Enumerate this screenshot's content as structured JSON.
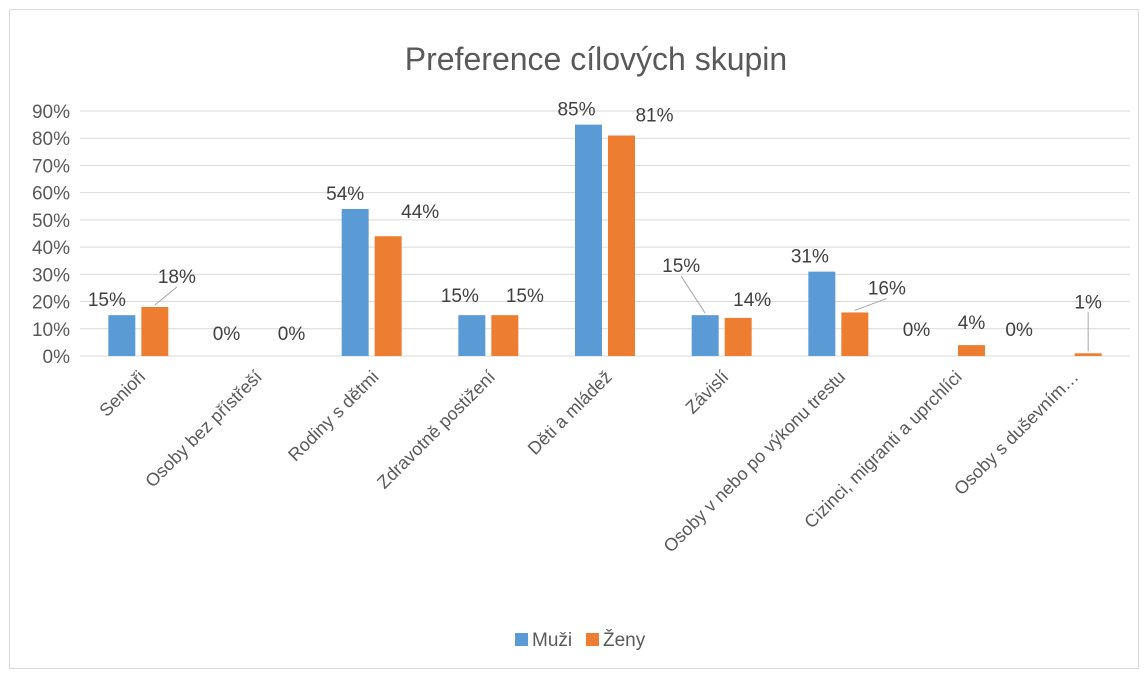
{
  "chart_data": {
    "type": "bar",
    "title": "Preference cílových skupin",
    "categories": [
      "Senioři",
      "Osoby bez přístřeší",
      "Rodiny s dětmi",
      "Zdravotně postižení",
      "Děti a mládež",
      "Závislí",
      "Osoby v nebo po výkonu trestu",
      "Cizinci, migranti a uprchlíci",
      "Osoby s duševním…"
    ],
    "series": [
      {
        "name": "Muži",
        "color": "#5b9bd5",
        "values": [
          0.15,
          0,
          0.54,
          0.15,
          0.85,
          0.15,
          0.31,
          0,
          0
        ],
        "labels": [
          "15%",
          "0%",
          "54%",
          "15%",
          "85%",
          "15%",
          "31%",
          "0%",
          "0%"
        ]
      },
      {
        "name": "Ženy",
        "color": "#ed7d31",
        "values": [
          0.18,
          0,
          0.44,
          0.15,
          0.81,
          0.14,
          0.16,
          0.04,
          0.01
        ],
        "labels": [
          "18%",
          "0%",
          "44%",
          "15%",
          "81%",
          "14%",
          "16%",
          "4%",
          "1%"
        ]
      }
    ],
    "y_ticks": [
      "0%",
      "10%",
      "20%",
      "30%",
      "40%",
      "50%",
      "60%",
      "70%",
      "80%",
      "90%"
    ],
    "ylim": [
      0,
      0.9
    ],
    "grid": true,
    "legend": "bottom-center",
    "xlabel": "",
    "ylabel": ""
  }
}
